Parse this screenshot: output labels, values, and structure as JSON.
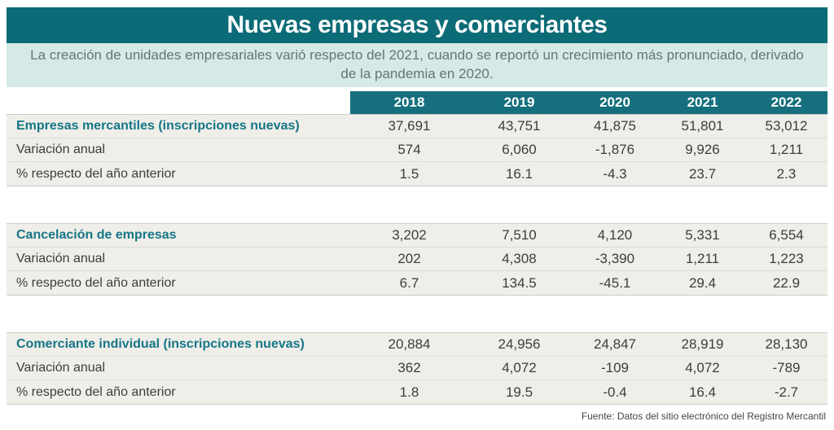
{
  "header": {
    "title": "Nuevas empresas y comerciantes",
    "subtitle": "La creación de unidades empresariales varió respecto del 2021, cuando se reportó un crecimiento más pronunciado, derivado de la pandemia en 2020."
  },
  "colors": {
    "title_bar_bg": "#0b6b76",
    "year_header_bg": "#156f7d",
    "subtitle_bg": "#d6e9e6",
    "row_bg": "#efeee8",
    "section_title_text": "#157687",
    "body_text": "#3d3d3b"
  },
  "table": {
    "year_columns": [
      "2018",
      "2019",
      "2020",
      "2021",
      "2022"
    ],
    "sections": [
      {
        "rows": [
          {
            "label": "Empresas mercantiles (inscripciones nuevas)",
            "values": [
              "37,691",
              "43,751",
              "41,875",
              "51,801",
              "53,012"
            ]
          },
          {
            "label": "Variación anual",
            "values": [
              "574",
              "6,060",
              "-1,876",
              "9,926",
              "1,211"
            ]
          },
          {
            "label": "% respecto del año anterior",
            "values": [
              "1.5",
              "16.1",
              "-4.3",
              "23.7",
              "2.3"
            ]
          }
        ]
      },
      {
        "rows": [
          {
            "label": "Cancelación de empresas",
            "values": [
              "3,202",
              "7,510",
              "4,120",
              "5,331",
              "6,554"
            ]
          },
          {
            "label": "Variación anual",
            "values": [
              "202",
              "4,308",
              "-3,390",
              "1,211",
              "1,223"
            ]
          },
          {
            "label": "% respecto del año anterior",
            "values": [
              "6.7",
              "134.5",
              "-45.1",
              "29.4",
              "22.9"
            ]
          }
        ]
      },
      {
        "rows": [
          {
            "label": "Comerciante individual (inscripciones nuevas)",
            "values": [
              "20,884",
              "24,956",
              "24,847",
              "28,919",
              "28,130"
            ]
          },
          {
            "label": "Variación anual",
            "values": [
              "362",
              "4,072",
              "-109",
              "4,072",
              "-789"
            ]
          },
          {
            "label": "% respecto del año anterior",
            "values": [
              "1.8",
              "19.5",
              "-0.4",
              "16.4",
              "-2.7"
            ]
          }
        ]
      }
    ]
  },
  "footer": {
    "source": "Fuente: Datos del sitio electrónico del Registro Mercantil"
  },
  "chart_data": {
    "type": "table",
    "title": "Nuevas empresas y comerciantes",
    "subtitle": "La creación de unidades empresariales varió respecto del 2021, cuando se reportó un crecimiento más pronunciado, derivado de la pandemia en 2020.",
    "categories": [
      "2018",
      "2019",
      "2020",
      "2021",
      "2022"
    ],
    "series": [
      {
        "name": "Empresas mercantiles (inscripciones nuevas)",
        "values": [
          37691,
          43751,
          41875,
          51801,
          53012
        ]
      },
      {
        "name": "Empresas mercantiles - Variación anual",
        "values": [
          574,
          6060,
          -1876,
          9926,
          1211
        ]
      },
      {
        "name": "Empresas mercantiles - % respecto del año anterior",
        "values": [
          1.5,
          16.1,
          -4.3,
          23.7,
          2.3
        ]
      },
      {
        "name": "Cancelación de empresas",
        "values": [
          3202,
          7510,
          4120,
          5331,
          6554
        ]
      },
      {
        "name": "Cancelación de empresas - Variación anual",
        "values": [
          202,
          4308,
          -3390,
          1211,
          1223
        ]
      },
      {
        "name": "Cancelación de empresas - % respecto del año anterior",
        "values": [
          6.7,
          134.5,
          -45.1,
          29.4,
          22.9
        ]
      },
      {
        "name": "Comerciante individual (inscripciones nuevas)",
        "values": [
          20884,
          24956,
          24847,
          28919,
          28130
        ]
      },
      {
        "name": "Comerciante individual - Variación anual",
        "values": [
          362,
          4072,
          -109,
          4072,
          -789
        ]
      },
      {
        "name": "Comerciante individual - % respecto del año anterior",
        "values": [
          1.8,
          19.5,
          -0.4,
          16.4,
          -2.7
        ]
      }
    ],
    "source": "Fuente: Datos del sitio electrónico del Registro Mercantil"
  }
}
